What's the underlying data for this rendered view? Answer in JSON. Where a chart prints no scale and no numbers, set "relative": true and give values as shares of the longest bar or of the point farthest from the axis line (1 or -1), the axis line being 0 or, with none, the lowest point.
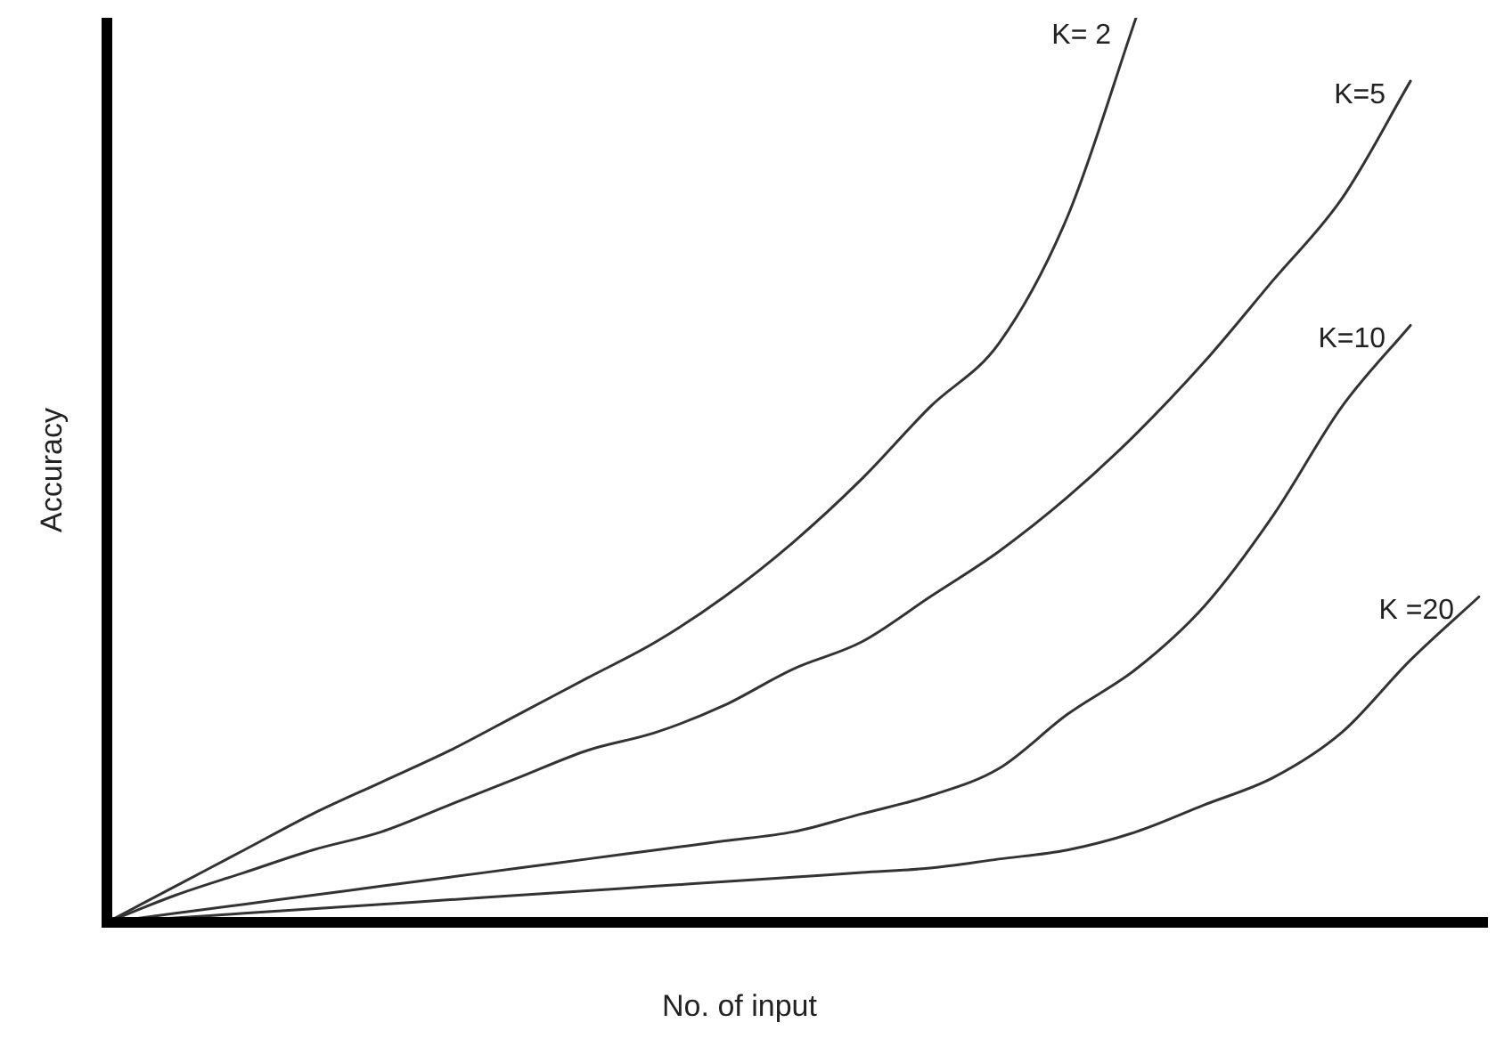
{
  "chart_data": {
    "type": "line",
    "relative": true,
    "xlabel": "No. of input",
    "ylabel": "Accuracy",
    "grid": false,
    "legend": false,
    "marker": "none",
    "line_style": "solid",
    "tick_labels": false,
    "categories": [
      null,
      null,
      null,
      null,
      null,
      null,
      null,
      null,
      null,
      null,
      null,
      null,
      null,
      null,
      null,
      null,
      null,
      null,
      null,
      null,
      null
    ],
    "series": [
      {
        "name": "K= 2",
        "color": "#333333",
        "values": [
          0,
          0.04,
          0.08,
          0.12,
          0.155,
          0.19,
          0.23,
          0.27,
          0.31,
          0.36,
          0.42,
          0.49,
          0.57,
          0.64,
          0.78,
          1,
          null,
          null,
          null,
          null,
          null
        ]
      },
      {
        "name": "K=5",
        "color": "#333333",
        "values": [
          0,
          0.03,
          0.055,
          0.08,
          0.1,
          0.13,
          0.16,
          0.19,
          0.21,
          0.24,
          0.28,
          0.31,
          0.36,
          0.41,
          0.47,
          0.54,
          0.62,
          0.71,
          0.8,
          0.93,
          null
        ]
      },
      {
        "name": "K=10",
        "color": "#333333",
        "values": [
          0,
          0.01,
          0.02,
          0.03,
          0.04,
          0.05,
          0.06,
          0.07,
          0.08,
          0.09,
          0.1,
          0.12,
          0.14,
          0.17,
          0.23,
          0.28,
          0.35,
          0.45,
          0.57,
          0.66,
          null
        ]
      },
      {
        "name": "K =20",
        "color": "#333333",
        "values": [
          0,
          0.005,
          0.01,
          0.015,
          0.02,
          0.025,
          0.03,
          0.035,
          0.04,
          0.045,
          0.05,
          0.055,
          0.06,
          0.07,
          0.08,
          0.1,
          0.13,
          0.16,
          0.21,
          0.29,
          0.36
        ]
      }
    ]
  }
}
